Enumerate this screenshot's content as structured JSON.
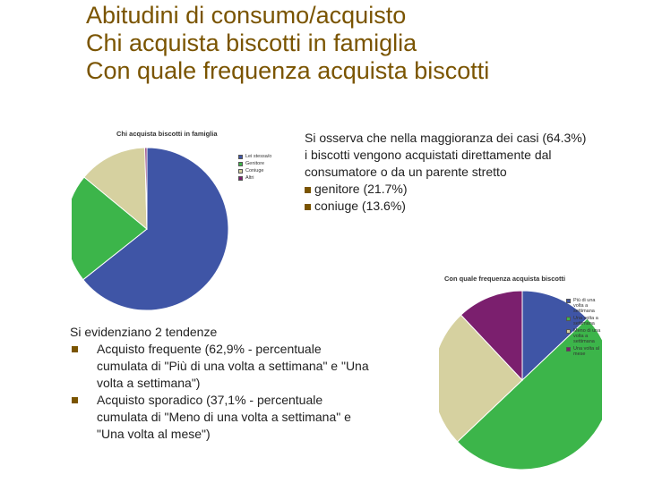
{
  "title": {
    "line1": "Abitudini di consumo/acquisto",
    "line2": "Chi acquista biscotti in famiglia",
    "line3": "Con quale frequenza acquista biscotti"
  },
  "note_right": {
    "text": "Si osserva che nella maggioranza dei casi (64.3%) i biscotti vengono acquistati direttamente dal consumatore o da un parente stretto",
    "bullets": [
      "genitore (21.7%)",
      "coniuge (13.6%)"
    ]
  },
  "note_left": {
    "heading": "Si evidenziano 2 tendenze",
    "bullets": [
      "Acquisto frequente (62,9% - percentuale cumulata di \"Più di una volta a settimana\" e \"Una volta a settimana\")",
      " Acquisto sporadico (37,1% - percentuale cumulata di \"Meno di una volta a settimana\" e \"Una volta al mese\")"
    ]
  },
  "chart_data": [
    {
      "type": "pie",
      "title": "Chi acquista biscotti in famiglia",
      "categories": [
        "Lei stessa/o",
        "Genitore",
        "Coniuge",
        "Altri"
      ],
      "values": [
        64.3,
        21.7,
        13.6,
        0.4
      ],
      "colors": [
        "#3f55a6",
        "#3cb54a",
        "#d6d1a0",
        "#7b1f6e"
      ],
      "legend_position": "right"
    },
    {
      "type": "pie",
      "title": "Con quale frequenza acquista biscotti",
      "categories": [
        "Più di una volta a settimana",
        "Una volta a settimana",
        "Meno di una volta a settimana",
        "Una volta al mese"
      ],
      "values": [
        12.9,
        50,
        25.1,
        12
      ],
      "colors": [
        "#3f55a6",
        "#3cb54a",
        "#d6d1a0",
        "#7b1f6e"
      ],
      "legend_position": "right"
    }
  ]
}
